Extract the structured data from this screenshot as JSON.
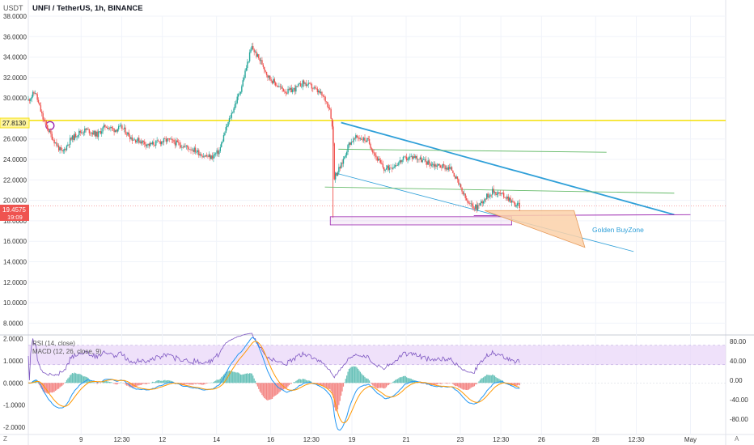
{
  "header": {
    "title": "UNFI / TetherUS, 1h, BINANCE",
    "currency": "USDT"
  },
  "colors": {
    "up": "#26a69a",
    "down": "#ef5350",
    "yellow_line": "#f5e21b",
    "wedge_blue": "#2e9fd8",
    "green_line": "#66bb6a",
    "purple_line": "#9c27b0",
    "buy_zone_fill": "#fbd1a9",
    "buy_zone_stroke": "#e69a5a",
    "rsi_band": "#e8d4f8",
    "rsi_line": "#7e57c2",
    "macd_line": "#2196f3",
    "signal_line": "#ff9800",
    "price_badge": "#ef5350",
    "yellow_badge": "#fff59d"
  },
  "chart_data": [
    {
      "type": "line",
      "panel": "price",
      "ylim": [
        7,
        38
      ],
      "y_ticks": [
        "38.0000",
        "36.0000",
        "34.0000",
        "32.0000",
        "30.0000",
        "26.0000",
        "24.0000",
        "22.0000",
        "20.0000",
        "18.0000",
        "16.0000",
        "14.0000",
        "12.0000",
        "10.0000",
        "8.0000"
      ],
      "y_tick_values": [
        38,
        36,
        34,
        32,
        30,
        26,
        24,
        22,
        20,
        18,
        16,
        14,
        12,
        10,
        8
      ],
      "x_ticks": [
        "9",
        "12:30",
        "12",
        "14",
        "16",
        "12:30",
        "19",
        "21",
        "23",
        "12:30",
        "26",
        "28",
        "12:30",
        "May"
      ],
      "x_tick_values": [
        9.0,
        10.5,
        12.0,
        14.0,
        16.0,
        17.5,
        19.0,
        21.0,
        23.0,
        24.5,
        26.0,
        28.0,
        29.5,
        31.5
      ],
      "xlim": [
        7.05,
        32.8
      ],
      "series": [
        {
          "values": [
            [
              7.05,
              29.8
            ],
            [
              7.3,
              30.6
            ],
            [
              7.6,
              27.9
            ],
            [
              7.9,
              26.3
            ],
            [
              8.1,
              25.4
            ],
            [
              8.3,
              24.6
            ],
            [
              8.6,
              25.9
            ],
            [
              8.9,
              26.6
            ],
            [
              9.2,
              26.9
            ],
            [
              9.6,
              26.4
            ],
            [
              9.9,
              27.3
            ],
            [
              10.2,
              26.9
            ],
            [
              10.5,
              27.1
            ],
            [
              10.9,
              26.0
            ],
            [
              11.2,
              25.8
            ],
            [
              11.5,
              25.4
            ],
            [
              11.9,
              25.7
            ],
            [
              12.2,
              25.9
            ],
            [
              12.5,
              25.6
            ],
            [
              12.9,
              25.2
            ],
            [
              13.2,
              24.9
            ],
            [
              13.5,
              24.4
            ],
            [
              13.8,
              24.2
            ],
            [
              14.1,
              24.8
            ],
            [
              14.3,
              26.6
            ],
            [
              14.6,
              28.8
            ],
            [
              14.9,
              30.9
            ],
            [
              15.1,
              33.0
            ],
            [
              15.3,
              35.0
            ],
            [
              15.5,
              34.1
            ],
            [
              15.7,
              33.3
            ],
            [
              15.9,
              32.1
            ],
            [
              16.1,
              31.6
            ],
            [
              16.3,
              31.1
            ],
            [
              16.6,
              30.6
            ],
            [
              16.9,
              30.9
            ],
            [
              17.2,
              31.5
            ],
            [
              17.5,
              31.1
            ],
            [
              17.8,
              30.5
            ],
            [
              18.0,
              29.9
            ],
            [
              18.2,
              28.9
            ],
            [
              18.3,
              26.3
            ],
            [
              18.35,
              22.3
            ],
            [
              18.6,
              23.4
            ],
            [
              18.9,
              25.6
            ],
            [
              19.2,
              26.2
            ],
            [
              19.6,
              25.8
            ],
            [
              19.9,
              24.2
            ],
            [
              20.2,
              23.0
            ],
            [
              20.6,
              23.5
            ],
            [
              20.9,
              24.0
            ],
            [
              21.3,
              24.3
            ],
            [
              21.6,
              23.9
            ],
            [
              22.0,
              23.5
            ],
            [
              22.4,
              23.3
            ],
            [
              22.7,
              23.0
            ],
            [
              23.0,
              21.2
            ],
            [
              23.3,
              19.6
            ],
            [
              23.6,
              19.3
            ],
            [
              23.9,
              20.2
            ],
            [
              24.2,
              20.9
            ],
            [
              24.5,
              20.6
            ],
            [
              24.8,
              20.2
            ],
            [
              25.0,
              19.6
            ],
            [
              25.2,
              19.5
            ]
          ]
        }
      ]
    },
    {
      "type": "line",
      "panel": "indicator",
      "title": "RSI (14, close)",
      "right_ticks": [
        "80.00",
        "40.00",
        "0.00",
        "-40.00",
        "-80.00"
      ],
      "right_tick_values": [
        80,
        40,
        0,
        -40,
        -80
      ],
      "band": [
        32,
        72
      ]
    },
    {
      "type": "bar",
      "panel": "indicator",
      "title": "MACD (12, 26, close, 9)",
      "ylim": [
        -2.3,
        2.1
      ],
      "left_ticks": [
        "2.0000",
        "1.0000",
        "0.0000",
        "-1.0000",
        "-2.0000"
      ],
      "left_tick_values": [
        2,
        1,
        0,
        -1,
        -2
      ]
    }
  ],
  "badges": {
    "yellow_level": "27.8130",
    "current_price": "19.4575",
    "countdown": "19:09"
  },
  "annotations": {
    "buy_zone_label": "Golden BuyZone"
  },
  "axis_corner": {
    "left": "Z",
    "right": "A"
  }
}
